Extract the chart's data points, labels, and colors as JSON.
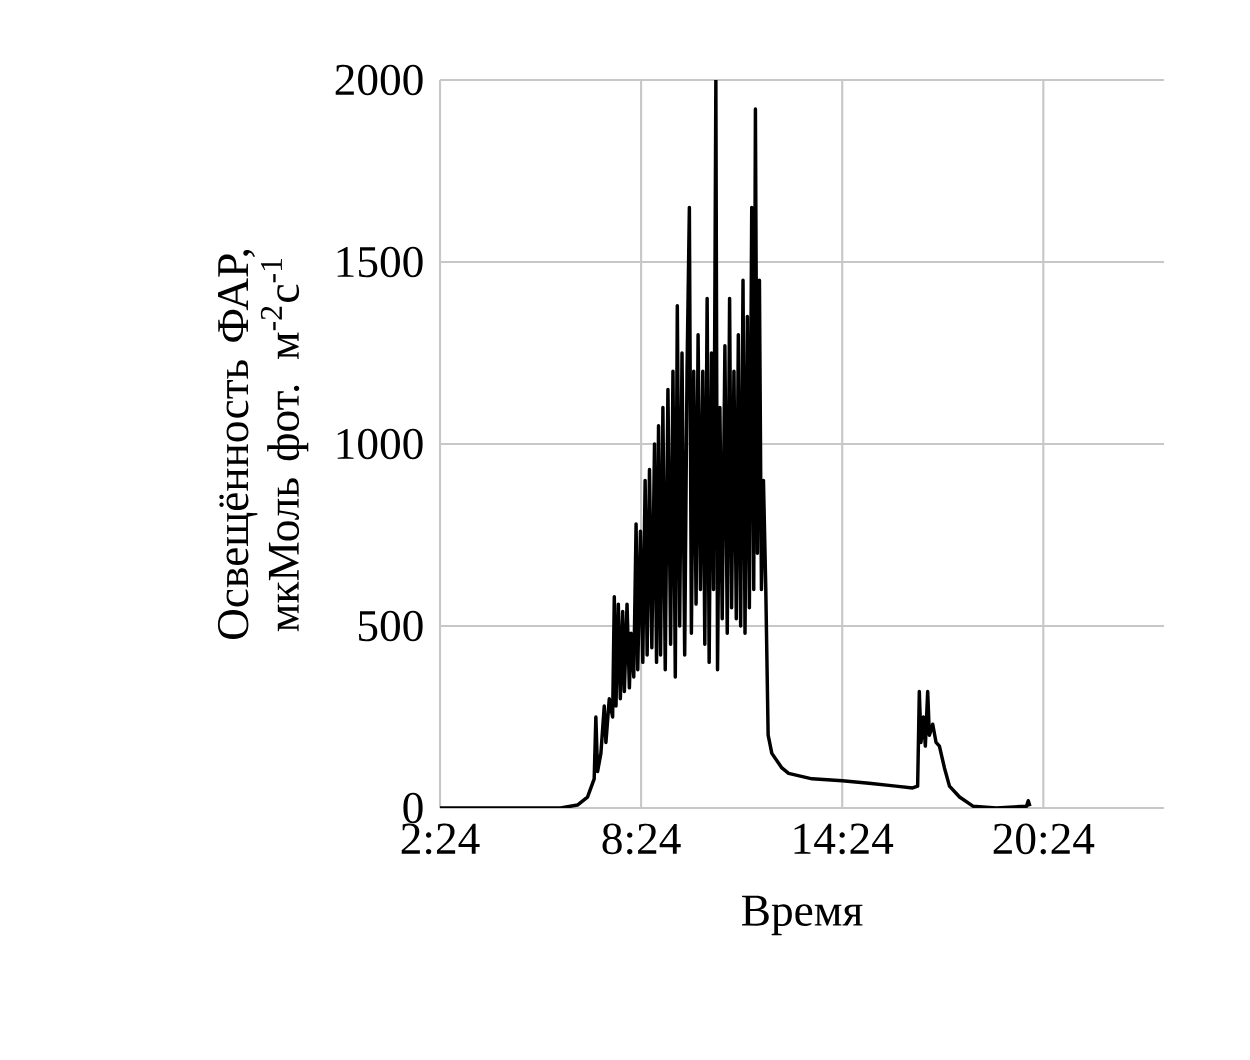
{
  "chart_data": {
    "type": "line",
    "xlabel": "Время",
    "ylabel": "Освещённость ФАР, мкМоль фот. м$^{-2}$с$^{-1}$",
    "xlim": [
      2.4,
      24
    ],
    "ylim": [
      0,
      2000
    ],
    "xticks": [
      {
        "value": 2.4,
        "label": "2:24"
      },
      {
        "value": 8.4,
        "label": "8:24"
      },
      {
        "value": 14.4,
        "label": "14:24"
      },
      {
        "value": 20.4,
        "label": "20:24"
      }
    ],
    "yticks": [
      0,
      500,
      1000,
      1500,
      2000
    ],
    "grid": true,
    "marker": "none",
    "series": [
      {
        "color": "#000000",
        "x": [
          2.4,
          4,
          6,
          6.5,
          6.8,
          7.0,
          7.05,
          7.1,
          7.2,
          7.3,
          7.35,
          7.45,
          7.55,
          7.6,
          7.65,
          7.72,
          7.78,
          7.85,
          7.9,
          7.98,
          8.05,
          8.1,
          8.18,
          8.25,
          8.3,
          8.38,
          8.45,
          8.52,
          8.58,
          8.65,
          8.72,
          8.8,
          8.86,
          8.92,
          8.98,
          9.05,
          9.12,
          9.2,
          9.28,
          9.35,
          9.42,
          9.48,
          9.55,
          9.62,
          9.7,
          9.77,
          9.84,
          9.9,
          9.97,
          10.04,
          10.1,
          10.17,
          10.24,
          10.3,
          10.37,
          10.43,
          10.5,
          10.56,
          10.63,
          10.68,
          10.75,
          10.82,
          10.9,
          10.97,
          11.04,
          11.1,
          11.17,
          11.24,
          11.3,
          11.37,
          11.44,
          11.5,
          11.57,
          11.63,
          11.7,
          11.76,
          11.81,
          11.87,
          11.93,
          11.99,
          12.05,
          12.12,
          12.19,
          12.3,
          12.6,
          12.8,
          13.5,
          14.4,
          15.2,
          16.0,
          16.5,
          16.65,
          16.7,
          16.75,
          16.82,
          16.88,
          16.95,
          17.0,
          17.1,
          17.2,
          17.3,
          17.45,
          17.6,
          17.9,
          18.3,
          19.0,
          19.9,
          19.95,
          20.0
        ],
        "values": [
          0,
          0,
          0,
          8,
          30,
          80,
          250,
          100,
          150,
          280,
          180,
          300,
          250,
          580,
          280,
          560,
          300,
          540,
          320,
          560,
          330,
          480,
          360,
          780,
          380,
          760,
          400,
          900,
          420,
          930,
          440,
          1000,
          400,
          1050,
          420,
          1100,
          380,
          1150,
          450,
          1200,
          360,
          1380,
          500,
          1250,
          420,
          1200,
          1650,
          480,
          1200,
          560,
          1300,
          600,
          1200,
          450,
          1400,
          400,
          1250,
          600,
          2000,
          380,
          1100,
          520,
          1270,
          480,
          1400,
          550,
          1200,
          520,
          1300,
          500,
          1450,
          480,
          1350,
          550,
          1650,
          600,
          1920,
          700,
          1450,
          600,
          900,
          600,
          200,
          150,
          110,
          95,
          80,
          75,
          68,
          60,
          55,
          60,
          320,
          180,
          250,
          170,
          320,
          200,
          230,
          180,
          170,
          110,
          60,
          30,
          5,
          0,
          5,
          20,
          5
        ]
      }
    ]
  }
}
